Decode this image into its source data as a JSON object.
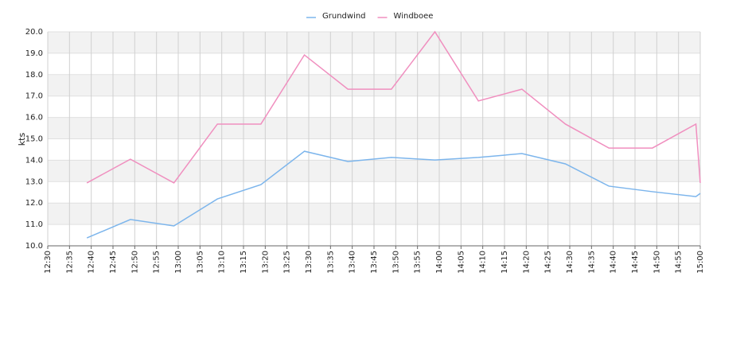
{
  "chart_data": {
    "type": "line",
    "y_label": "kts",
    "x": [
      "12:39",
      "12:49",
      "12:59",
      "13:09",
      "13:19",
      "13:29",
      "13:39",
      "13:49",
      "13:59",
      "14:09",
      "14:19",
      "14:29",
      "14:39",
      "14:49",
      "14:59",
      "15:00"
    ],
    "series": [
      {
        "name": "Grundwind",
        "color": "#7cb5ec",
        "values": [
          10.37,
          11.23,
          10.93,
          12.19,
          12.86,
          14.42,
          13.94,
          14.13,
          14.01,
          14.13,
          14.31,
          13.83,
          12.79,
          12.53,
          12.3,
          12.45
        ]
      },
      {
        "name": "Windboee",
        "color": "#f08fbf",
        "values": [
          12.94,
          14.05,
          12.94,
          15.69,
          15.69,
          18.92,
          17.32,
          17.32,
          20.0,
          16.77,
          17.32,
          15.69,
          14.57,
          14.57,
          15.69,
          12.94
        ]
      }
    ],
    "xlim": [
      "12:30",
      "15:00"
    ],
    "xticks": [
      "12:30",
      "12:35",
      "12:40",
      "12:45",
      "12:50",
      "12:55",
      "13:00",
      "13:05",
      "13:10",
      "13:15",
      "13:20",
      "13:25",
      "13:30",
      "13:35",
      "13:40",
      "13:45",
      "13:50",
      "13:55",
      "14:00",
      "14:05",
      "14:10",
      "14:15",
      "14:20",
      "14:25",
      "14:30",
      "14:35",
      "14:40",
      "14:45",
      "14:50",
      "14:55",
      "15:00"
    ],
    "ylim": [
      10,
      20
    ],
    "yticks": [
      {
        "value": 10,
        "label": "10.0"
      },
      {
        "value": 11,
        "label": "11.0"
      },
      {
        "value": 12,
        "label": "12.0"
      },
      {
        "value": 13,
        "label": "13.0"
      },
      {
        "value": 14,
        "label": "14.0"
      },
      {
        "value": 15,
        "label": "15.0"
      },
      {
        "value": 16,
        "label": "16.0"
      },
      {
        "value": 17,
        "label": "17.0"
      },
      {
        "value": 18,
        "label": "18.0"
      },
      {
        "value": 19,
        "label": "19.0"
      },
      {
        "value": 20,
        "label": "20.0"
      }
    ],
    "grid": true,
    "legend": "top"
  }
}
